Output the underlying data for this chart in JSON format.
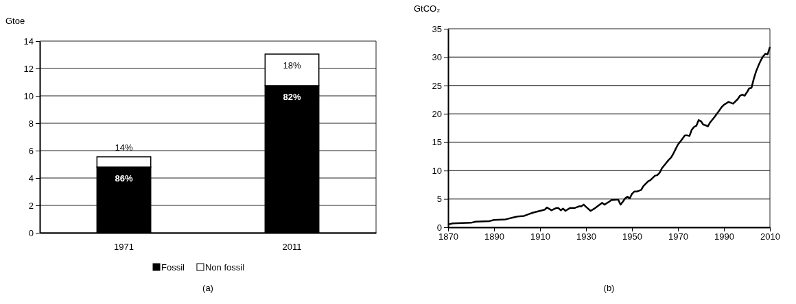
{
  "chart_data": [
    {
      "type": "bar",
      "title": "(a)",
      "ylabel": "Gtoe",
      "stacked": true,
      "categories": [
        "1971",
        "2011"
      ],
      "series": [
        {
          "name": "Fossil",
          "color": "#000000",
          "values": [
            4.8,
            10.75
          ]
        },
        {
          "name": "Non fossil",
          "color": "#ffffff",
          "values": [
            0.75,
            2.3
          ]
        }
      ],
      "annotations": [
        {
          "text": "86%",
          "x": "1971",
          "y": 4.8
        },
        {
          "text": "14%",
          "x": "1971",
          "y": 5.55
        },
        {
          "text": "82%",
          "x": "2011",
          "y": 10.75
        },
        {
          "text": "18%",
          "x": "2011",
          "y": 13.05
        }
      ],
      "ylim": [
        0,
        14
      ],
      "yticks": [
        0,
        2,
        4,
        6,
        8,
        10,
        12,
        14
      ],
      "grid": "y",
      "legend": "bottom"
    },
    {
      "type": "line",
      "title": "(b)",
      "ylabel": "GtCO₂",
      "x": [
        1870,
        1872,
        1880,
        1882,
        1888,
        1890,
        1895,
        1900,
        1903,
        1905,
        1907,
        1910,
        1912,
        1913,
        1915,
        1917,
        1918,
        1919,
        1920,
        1921,
        1923,
        1925,
        1927,
        1928,
        1929,
        1930,
        1932,
        1934,
        1936,
        1937,
        1938,
        1940,
        1941,
        1943,
        1944,
        1945,
        1946,
        1947,
        1948,
        1949,
        1950,
        1951,
        1952,
        1954,
        1955,
        1957,
        1958,
        1960,
        1961,
        1962,
        1963,
        1965,
        1966,
        1967,
        1968,
        1969,
        1970,
        1971,
        1973,
        1974,
        1975,
        1976,
        1977,
        1978,
        1979,
        1980,
        1981,
        1982,
        1983,
        1984,
        1986,
        1988,
        1989,
        1990,
        1992,
        1994,
        1996,
        1997,
        1998,
        1999,
        2000,
        2001,
        2002,
        2003,
        2004,
        2005,
        2006,
        2007,
        2008,
        2009,
        2010
      ],
      "series": [
        {
          "color": "#000000",
          "values": [
            0.5,
            0.7,
            0.8,
            1.0,
            1.1,
            1.3,
            1.4,
            1.9,
            2.0,
            2.3,
            2.6,
            2.9,
            3.1,
            3.5,
            3.0,
            3.4,
            3.4,
            3.0,
            3.3,
            2.9,
            3.4,
            3.4,
            3.7,
            3.7,
            4.0,
            3.6,
            2.9,
            3.4,
            4.0,
            4.3,
            4.0,
            4.5,
            4.8,
            4.9,
            4.9,
            4.0,
            4.5,
            5.1,
            5.4,
            5.1,
            5.9,
            6.3,
            6.3,
            6.6,
            7.3,
            8.1,
            8.3,
            9.1,
            9.2,
            9.6,
            10.4,
            11.4,
            11.9,
            12.3,
            13.0,
            13.8,
            14.6,
            15.1,
            16.2,
            16.2,
            16.1,
            17.2,
            17.7,
            17.9,
            18.9,
            18.7,
            18.1,
            18.0,
            17.8,
            18.5,
            19.5,
            20.6,
            21.2,
            21.6,
            22.1,
            21.8,
            22.6,
            23.2,
            23.4,
            23.2,
            23.8,
            24.5,
            24.6,
            26.2,
            27.5,
            28.5,
            29.4,
            30.1,
            30.6,
            30.5,
            31.8
          ]
        }
      ],
      "xlim": [
        1870,
        2010
      ],
      "xticks": [
        1870,
        1890,
        1910,
        1930,
        1950,
        1970,
        1990,
        2010
      ],
      "ylim": [
        0,
        35
      ],
      "yticks": [
        0,
        5,
        10,
        15,
        20,
        25,
        30,
        35
      ],
      "grid": "y",
      "marker": "none",
      "line_style": "solid"
    }
  ]
}
